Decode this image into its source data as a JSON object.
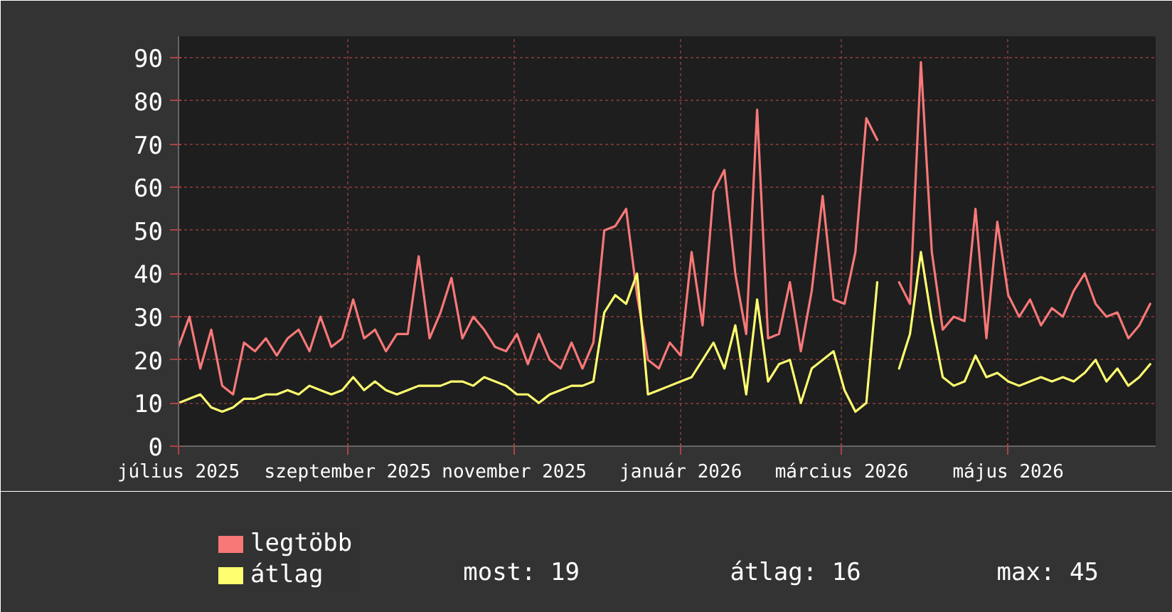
{
  "chart_data": {
    "type": "line",
    "x": [
      "2025-07-01",
      "2025-07-05",
      "2025-07-09",
      "2025-07-13",
      "2025-07-17",
      "2025-07-21",
      "2025-07-25",
      "2025-07-29",
      "2025-08-02",
      "2025-08-06",
      "2025-08-10",
      "2025-08-14",
      "2025-08-18",
      "2025-08-22",
      "2025-08-26",
      "2025-08-30",
      "2025-09-03",
      "2025-09-07",
      "2025-09-11",
      "2025-09-15",
      "2025-09-19",
      "2025-09-23",
      "2025-09-27",
      "2025-10-01",
      "2025-10-05",
      "2025-10-09",
      "2025-10-13",
      "2025-10-17",
      "2025-10-21",
      "2025-10-25",
      "2025-10-29",
      "2025-11-02",
      "2025-11-06",
      "2025-11-10",
      "2025-11-14",
      "2025-11-18",
      "2025-11-22",
      "2025-11-26",
      "2025-11-30",
      "2025-12-04",
      "2025-12-08",
      "2025-12-12",
      "2025-12-16",
      "2025-12-20",
      "2025-12-24",
      "2025-12-28",
      "2026-01-01",
      "2026-01-05",
      "2026-01-09",
      "2026-01-13",
      "2026-01-17",
      "2026-01-21",
      "2026-01-25",
      "2026-01-29",
      "2026-02-02",
      "2026-02-06",
      "2026-02-10",
      "2026-02-14",
      "2026-02-18",
      "2026-02-22",
      "2026-02-26",
      "2026-03-02",
      "2026-03-06",
      "2026-03-10",
      "2026-03-14",
      "2026-03-18",
      "2026-03-22",
      "2026-03-26",
      "2026-03-30",
      "2026-04-03",
      "2026-04-07",
      "2026-04-11",
      "2026-04-15",
      "2026-04-19",
      "2026-04-23",
      "2026-04-27",
      "2026-05-01",
      "2026-05-05",
      "2026-05-09",
      "2026-05-13",
      "2026-05-17",
      "2026-05-21",
      "2026-05-25",
      "2026-05-29",
      "2026-06-02",
      "2026-06-06",
      "2026-06-10",
      "2026-06-14",
      "2026-06-18",
      "2026-06-22"
    ],
    "series": [
      {
        "name": "legtöbb",
        "color": "#f87878",
        "values": [
          23,
          30,
          18,
          27,
          14,
          12,
          24,
          22,
          25,
          21,
          25,
          27,
          22,
          30,
          23,
          25,
          34,
          25,
          27,
          22,
          26,
          26,
          44,
          25,
          31,
          39,
          25,
          30,
          27,
          23,
          22,
          26,
          19,
          26,
          20,
          18,
          24,
          18,
          24,
          50,
          51,
          55,
          35,
          20,
          18,
          24,
          21,
          45,
          28,
          59,
          64,
          40,
          26,
          78,
          25,
          26,
          38,
          22,
          36,
          58,
          34,
          33,
          45,
          76,
          71,
          null,
          38,
          33,
          89,
          45,
          27,
          30,
          29,
          55,
          25,
          52,
          35,
          30,
          34,
          28,
          32,
          30,
          36,
          40,
          33,
          30,
          31,
          25,
          28,
          33
        ]
      },
      {
        "name": "átlag",
        "color": "#ffff70",
        "values": [
          10,
          11,
          12,
          9,
          8,
          9,
          11,
          11,
          12,
          12,
          13,
          12,
          14,
          13,
          12,
          13,
          16,
          13,
          15,
          13,
          12,
          13,
          14,
          14,
          14,
          15,
          15,
          14,
          16,
          15,
          14,
          12,
          12,
          10,
          12,
          13,
          14,
          14,
          15,
          31,
          35,
          33,
          40,
          12,
          13,
          14,
          15,
          16,
          20,
          24,
          18,
          28,
          12,
          34,
          15,
          19,
          20,
          10,
          18,
          20,
          22,
          13,
          8,
          10,
          38,
          null,
          18,
          26,
          45,
          29,
          16,
          14,
          15,
          21,
          16,
          17,
          15,
          14,
          15,
          16,
          15,
          16,
          15,
          17,
          20,
          15,
          18,
          14,
          16,
          19
        ]
      }
    ],
    "xlim": [
      "2025-07-01",
      "2026-06-24"
    ],
    "xticks": [
      {
        "value": "2025-07-01",
        "label": "július 2025"
      },
      {
        "value": "2025-09-01",
        "label": "szeptember 2025"
      },
      {
        "value": "2025-11-01",
        "label": "november 2025"
      },
      {
        "value": "2026-01-01",
        "label": "január 2026"
      },
      {
        "value": "2026-03-01",
        "label": "március 2026"
      },
      {
        "value": "2026-05-01",
        "label": "május 2026"
      }
    ],
    "ylim": [
      0,
      95
    ],
    "yticks": [
      0,
      10,
      20,
      30,
      40,
      50,
      60,
      70,
      80,
      90
    ],
    "grid": true,
    "legend": "bottom left",
    "line_style": "solid",
    "annotations": [
      "most: 19",
      "átlag: 16",
      "max: 45"
    ]
  }
}
